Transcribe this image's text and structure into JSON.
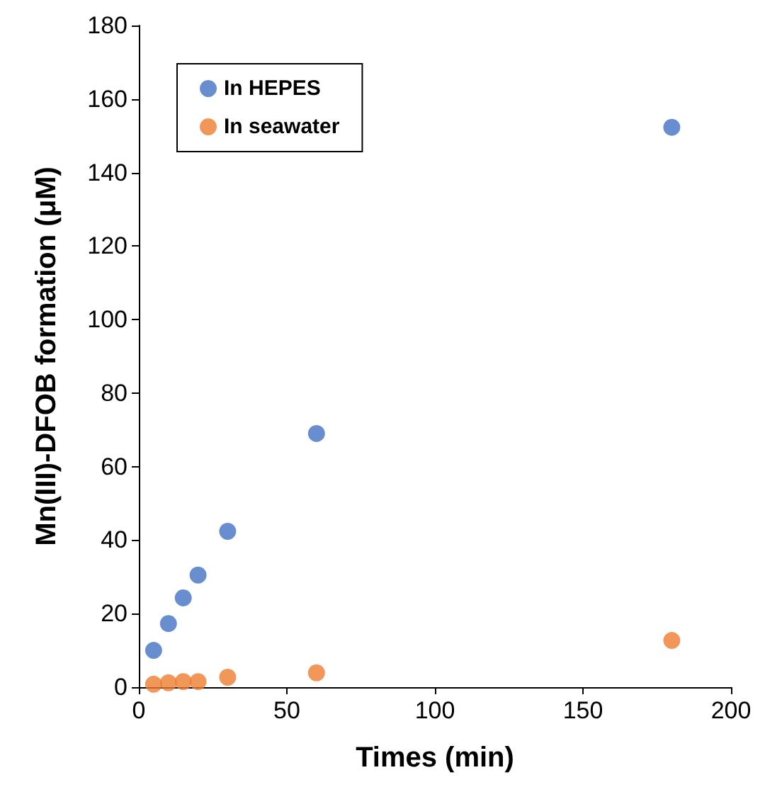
{
  "chart_data": {
    "type": "scatter",
    "xlabel": "Times (min)",
    "ylabel": "Mn(III)-DFOB formation (μM)",
    "x": [
      5,
      10,
      15,
      20,
      30,
      60,
      180
    ],
    "series": [
      {
        "name": "In HEPES",
        "color": "#4472c4",
        "values": [
          10,
          17.3,
          24.3,
          30.5,
          42.4,
          69,
          152.3
        ]
      },
      {
        "name": "In seawater",
        "color": "#ed7d31",
        "values": [
          0.8,
          1.2,
          1.5,
          1.5,
          2.7,
          3.9,
          12.7
        ]
      }
    ],
    "xlim": [
      0,
      200
    ],
    "xticks": [
      0,
      50,
      100,
      150,
      200
    ],
    "ylim": [
      0,
      180
    ],
    "yticks": [
      0,
      20,
      40,
      60,
      80,
      100,
      120,
      140,
      160,
      180
    ],
    "grid": false,
    "legend": "top left",
    "marker": "circle"
  }
}
